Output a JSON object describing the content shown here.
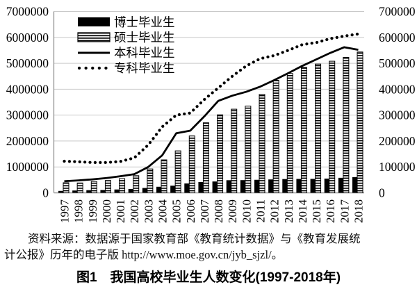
{
  "caption": {
    "source_line1": "资料来源：数据源于国家教育部《教育统计数据》与《教育发展统",
    "source_line2": "计公报》历年的电子版 http://www.moe.gov.cn/jyb_sjzl/。",
    "figure_title": "图1　我国高校毕业生人数变化(1997-2018年)"
  },
  "chart_data": {
    "type": "combo-bar-line",
    "title": "",
    "categories": [
      1997,
      1998,
      1999,
      2000,
      2001,
      2002,
      2003,
      2004,
      2005,
      2006,
      2007,
      2008,
      2009,
      2010,
      2011,
      2012,
      2013,
      2014,
      2015,
      2016,
      2017,
      2018
    ],
    "left_axis": {
      "min": 0,
      "max": 7000000,
      "step": 1000000,
      "ticks": [
        "7000000",
        "6000000",
        "5000000",
        "4000000",
        "3000000",
        "2000000",
        "1000000",
        "0"
      ]
    },
    "right_axis": {
      "min": 0,
      "max": 700000,
      "step": 100000,
      "ticks": [
        "700000",
        "600000",
        "500000",
        "400000",
        "300000",
        "200000",
        "100000",
        "0"
      ]
    },
    "grid": true,
    "legend_position": "top-left",
    "series": [
      {
        "name": "博士毕业生",
        "type": "bar",
        "style": "solid-black",
        "axis": "right",
        "values": [
          7300,
          9000,
          10300,
          11000,
          12900,
          14600,
          18800,
          23400,
          27700,
          36200,
          41500,
          43800,
          48700,
          49000,
          50300,
          51700,
          53100,
          53700,
          53800,
          55000,
          58000,
          60700
        ]
      },
      {
        "name": "硕士毕业生",
        "type": "bar",
        "style": "horizontal-stripes",
        "axis": "right",
        "values": [
          39000,
          38100,
          44000,
          47600,
          54900,
          66200,
          92200,
          127300,
          162000,
          219700,
          270400,
          301100,
          322900,
          334600,
          379700,
          434700,
          460500,
          484000,
          497000,
          508000,
          523000,
          543600
        ]
      },
      {
        "name": "本科毕业生",
        "type": "line",
        "style": "solid",
        "axis": "left",
        "values": [
          450000,
          480000,
          520000,
          570000,
          640000,
          720000,
          1000000,
          1450000,
          2300000,
          2400000,
          2950000,
          3550000,
          3750000,
          3900000,
          4100000,
          4350000,
          4620000,
          4900000,
          5150000,
          5400000,
          5620000,
          5520000
        ]
      },
      {
        "name": "专科毕业生",
        "type": "line",
        "style": "dotted",
        "axis": "left",
        "values": [
          1220000,
          1200000,
          1170000,
          1170000,
          1210000,
          1350000,
          1850000,
          2550000,
          3000000,
          3080000,
          3600000,
          4050000,
          4500000,
          4900000,
          5180000,
          5300000,
          5500000,
          5720000,
          5800000,
          5950000,
          6050000,
          6130000
        ]
      }
    ]
  }
}
